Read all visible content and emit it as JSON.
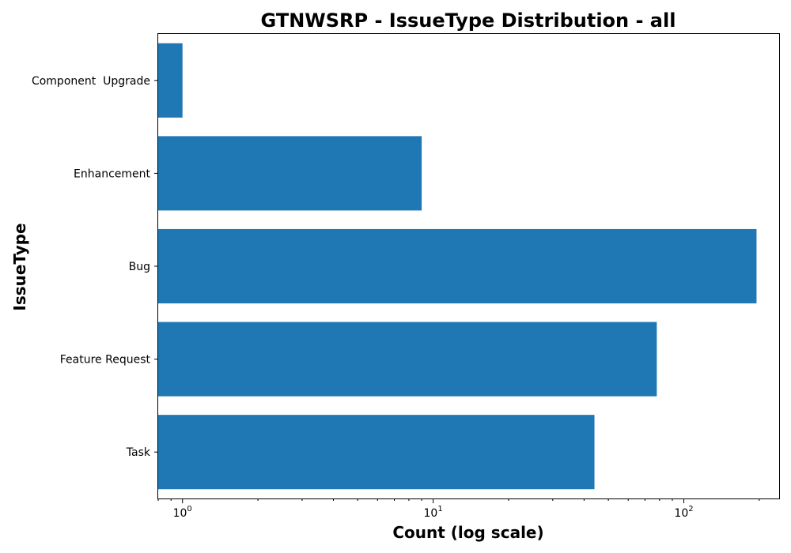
{
  "chart_data": {
    "type": "bar",
    "orientation": "horizontal",
    "title": "GTNWSRP - IssueType Distribution - all",
    "xlabel": "Count (log scale)",
    "ylabel": "IssueType",
    "x_scale": "log",
    "xlim": [
      0.8,
      240
    ],
    "x_major_ticks": [
      {
        "value": 1,
        "base": "10",
        "exponent": "0"
      },
      {
        "value": 10,
        "base": "10",
        "exponent": "1"
      },
      {
        "value": 100,
        "base": "10",
        "exponent": "2"
      }
    ],
    "categories": [
      "Component  Upgrade",
      "Enhancement",
      "Bug",
      "Feature Request",
      "Task"
    ],
    "values": [
      1,
      9,
      195,
      78,
      44
    ],
    "bar_color": "#1f77b4",
    "grid": false,
    "legend": "none"
  }
}
